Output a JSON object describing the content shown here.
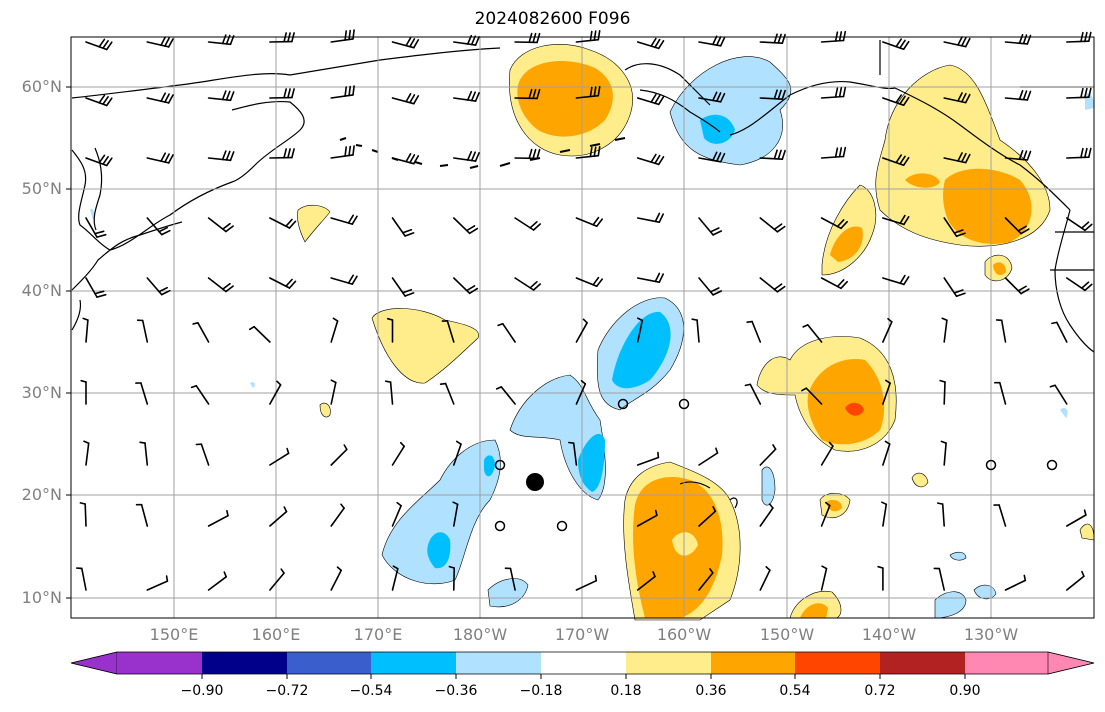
{
  "title": "2024082600 F096",
  "lat_labels": [
    "60°N",
    "50°N",
    "40°N",
    "30°N",
    "20°N",
    "10°N"
  ],
  "lon_labels": [
    "150°E",
    "160°E",
    "170°E",
    "180°W",
    "170°W",
    "160°W",
    "150°W",
    "140°W",
    "130°W"
  ],
  "colorbar": {
    "labels": [
      "−0.90",
      "−0.72",
      "−0.54",
      "−0.36",
      "−0.18",
      "0.18",
      "0.36",
      "0.54",
      "0.72",
      "0.90"
    ],
    "colors": [
      "#9932cc",
      "#00008b",
      "#3a5fcd",
      "#00bfff",
      "#b0e2ff",
      "#ffffff",
      "#ffec8b",
      "#ffa500",
      "#ff4500",
      "#b22222",
      "#ff88b3"
    ]
  },
  "colors": {
    "neg_light": "#b0e2ff",
    "neg_mid": "#00bfff",
    "pos_light": "#ffec8b",
    "pos_mid": "#ffa500",
    "pos_strong": "#ff4500",
    "grid": "#a0a0a0",
    "coast": "#000000"
  }
}
